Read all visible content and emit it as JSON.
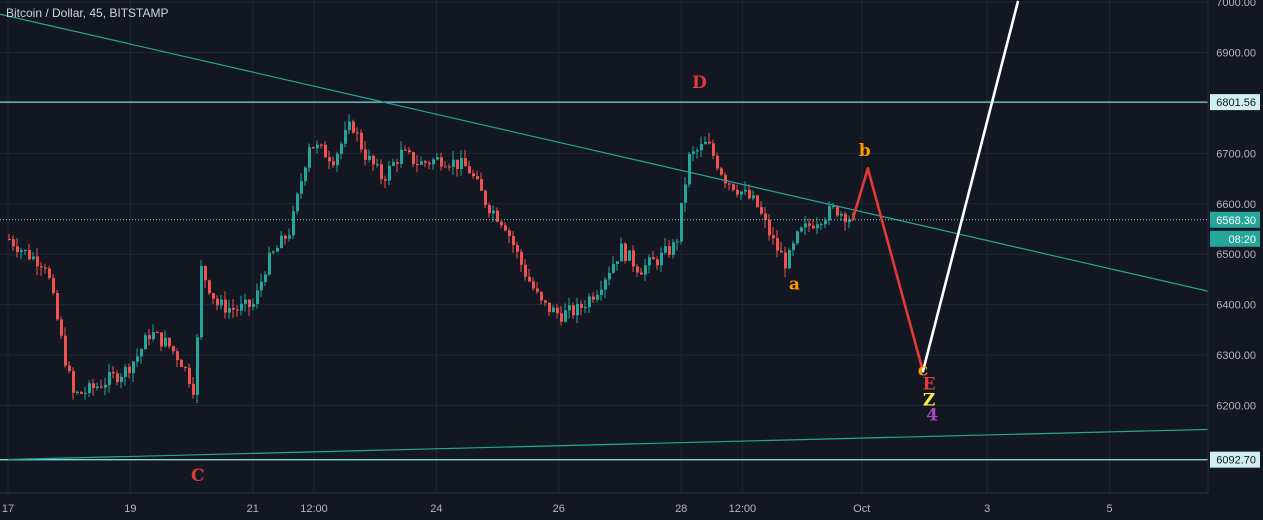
{
  "chart_data": {
    "type": "candlestick",
    "title": "Bitcoin / Dollar, 45, BITSTAMP",
    "xlabel": "",
    "ylabel": "",
    "ylim": [
      5920,
      7000
    ],
    "price_ticks": [
      "7000.00",
      "6900.00",
      "6800.00",
      "6700.00",
      "6600.00",
      "6500.00",
      "6400.00",
      "6300.00",
      "6200.00"
    ],
    "date_ticks": [
      "17",
      "19",
      "21",
      "12:00",
      "24",
      "26",
      "28",
      "12:00",
      "Oct",
      "3",
      "5"
    ],
    "grid": true,
    "colors": {
      "background": "#131722",
      "up": "#26a69a",
      "down": "#ef5350",
      "horizontal_line": "#7fd6d6",
      "trendline": "#26a69a",
      "projection_down": "#e53935",
      "projection_up": "#ffffff"
    },
    "horizontal_levels": [
      {
        "value": 6801.56,
        "label": "6801.56"
      },
      {
        "value": 6092.7,
        "label": "6092.70"
      }
    ],
    "current_price": {
      "value": 6568.3,
      "label": "6568.30",
      "countdown": "08:20"
    },
    "price_path": [
      [
        17.0,
        6530
      ],
      [
        17.3,
        6500
      ],
      [
        17.6,
        6480
      ],
      [
        17.9,
        6300
      ],
      [
        18.05,
        6220
      ],
      [
        18.3,
        6230
      ],
      [
        18.6,
        6250
      ],
      [
        18.9,
        6270
      ],
      [
        19.1,
        6300
      ],
      [
        19.3,
        6345
      ],
      [
        19.6,
        6320
      ],
      [
        19.8,
        6290
      ],
      [
        20.0,
        6240
      ],
      [
        20.05,
        6210
      ],
      [
        20.1,
        6480
      ],
      [
        20.4,
        6400
      ],
      [
        20.7,
        6390
      ],
      [
        21.0,
        6400
      ],
      [
        21.2,
        6480
      ],
      [
        21.6,
        6550
      ],
      [
        21.9,
        6720
      ],
      [
        22.3,
        6690
      ],
      [
        22.6,
        6760
      ],
      [
        22.8,
        6700
      ],
      [
        23.1,
        6650
      ],
      [
        23.4,
        6700
      ],
      [
        23.7,
        6680
      ],
      [
        24.1,
        6690
      ],
      [
        24.5,
        6670
      ],
      [
        24.8,
        6600
      ],
      [
        25.1,
        6560
      ],
      [
        25.4,
        6470
      ],
      [
        25.7,
        6400
      ],
      [
        26.0,
        6380
      ],
      [
        26.3,
        6390
      ],
      [
        26.6,
        6430
      ],
      [
        27.0,
        6510
      ],
      [
        27.3,
        6470
      ],
      [
        27.6,
        6490
      ],
      [
        27.9,
        6520
      ],
      [
        28.1,
        6690
      ],
      [
        28.4,
        6720
      ],
      [
        28.7,
        6650
      ],
      [
        29.0,
        6620
      ],
      [
        29.2,
        6600
      ],
      [
        29.5,
        6520
      ],
      [
        29.7,
        6480
      ],
      [
        29.9,
        6540
      ],
      [
        30.2,
        6570
      ],
      [
        30.5,
        6590
      ],
      [
        30.8,
        6568
      ]
    ],
    "projection": [
      {
        "x": [
          30.8,
          31.05
        ],
        "y": [
          6568,
          6670
        ],
        "color": "down"
      },
      {
        "x": [
          31.05,
          31.95
        ],
        "y": [
          6670,
          6268
        ],
        "color": "down"
      },
      {
        "x": [
          31.95,
          33.5
        ],
        "y": [
          6268,
          7000
        ],
        "color": "up"
      }
    ],
    "trendlines": [
      {
        "x": [
          16.0,
          38.0
        ],
        "y": [
          7000,
          6388
        ]
      },
      {
        "x": [
          17.0,
          39.0
        ],
        "y": [
          6093,
          6160
        ]
      }
    ],
    "wave_labels": [
      {
        "text": "D",
        "x": 28.3,
        "y": 6830,
        "color": "#e53935"
      },
      {
        "text": "C",
        "x": 20.1,
        "y": 6050,
        "color": "#e53935"
      },
      {
        "text": "a",
        "x": 29.85,
        "y": 6430,
        "color": "#ff9800"
      },
      {
        "text": "b",
        "x": 31.0,
        "y": 6695,
        "color": "#ff9800"
      },
      {
        "text": "c",
        "x": 31.95,
        "y": 6260,
        "color": "#ff9800"
      },
      {
        "text": "E",
        "x": 32.05,
        "y": 6232,
        "color": "#e53935"
      },
      {
        "text": "Z",
        "x": 32.05,
        "y": 6200,
        "color": "#ffeb3b"
      },
      {
        "text": "4",
        "x": 32.1,
        "y": 6170,
        "color": "#ab47bc"
      }
    ]
  }
}
